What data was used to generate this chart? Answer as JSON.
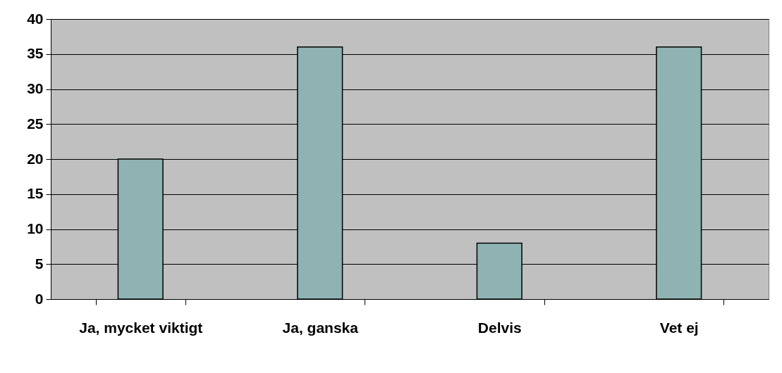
{
  "chart_data": {
    "type": "bar",
    "categories": [
      "Ja, mycket viktigt",
      "Ja, ganska",
      "Delvis",
      "Vet ej"
    ],
    "values": [
      20,
      36,
      8,
      36
    ],
    "color": "#8fb3b3",
    "ylim": [
      0,
      40
    ],
    "yticks": [
      0,
      5,
      10,
      15,
      20,
      25,
      30,
      35,
      40
    ],
    "grid": "y"
  }
}
